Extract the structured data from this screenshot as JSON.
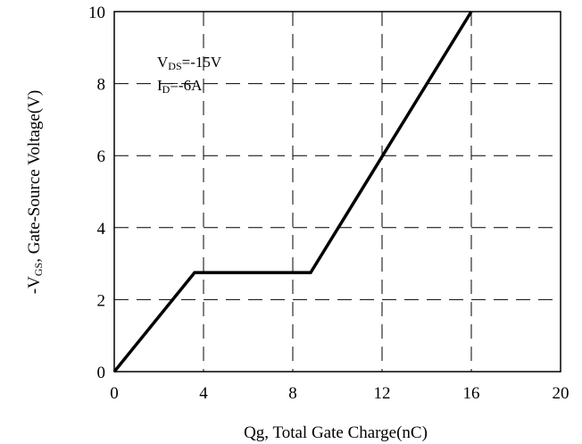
{
  "chart_data": {
    "type": "line",
    "title": "",
    "xlabel": "Qg, Total Gate Charge(nC)",
    "ylabel": {
      "prefix": "-V",
      "subscript": "GS",
      "suffix": ", Gate-Source Voltage(V)"
    },
    "xlim": [
      0,
      20
    ],
    "ylim": [
      0,
      10
    ],
    "x_ticks": [
      0,
      4,
      8,
      12,
      16,
      20
    ],
    "y_ticks": [
      0,
      2,
      4,
      6,
      8,
      10
    ],
    "x_tick_labels": [
      "0",
      "4",
      "8",
      "12",
      "16",
      "20"
    ],
    "y_tick_labels": [
      "0",
      "2",
      "4",
      "6",
      "8",
      "10"
    ],
    "grid": "dashed",
    "series": [
      {
        "x": [
          0,
          3.6,
          8.8,
          16.0
        ],
        "y": [
          0,
          2.75,
          2.75,
          10.0
        ]
      }
    ],
    "annotations": [
      {
        "main": "V",
        "sub": "DS",
        "rest": "=-15V"
      },
      {
        "main": "I",
        "sub": "D",
        "rest": "=-6A"
      }
    ],
    "line_color": "#000000"
  }
}
